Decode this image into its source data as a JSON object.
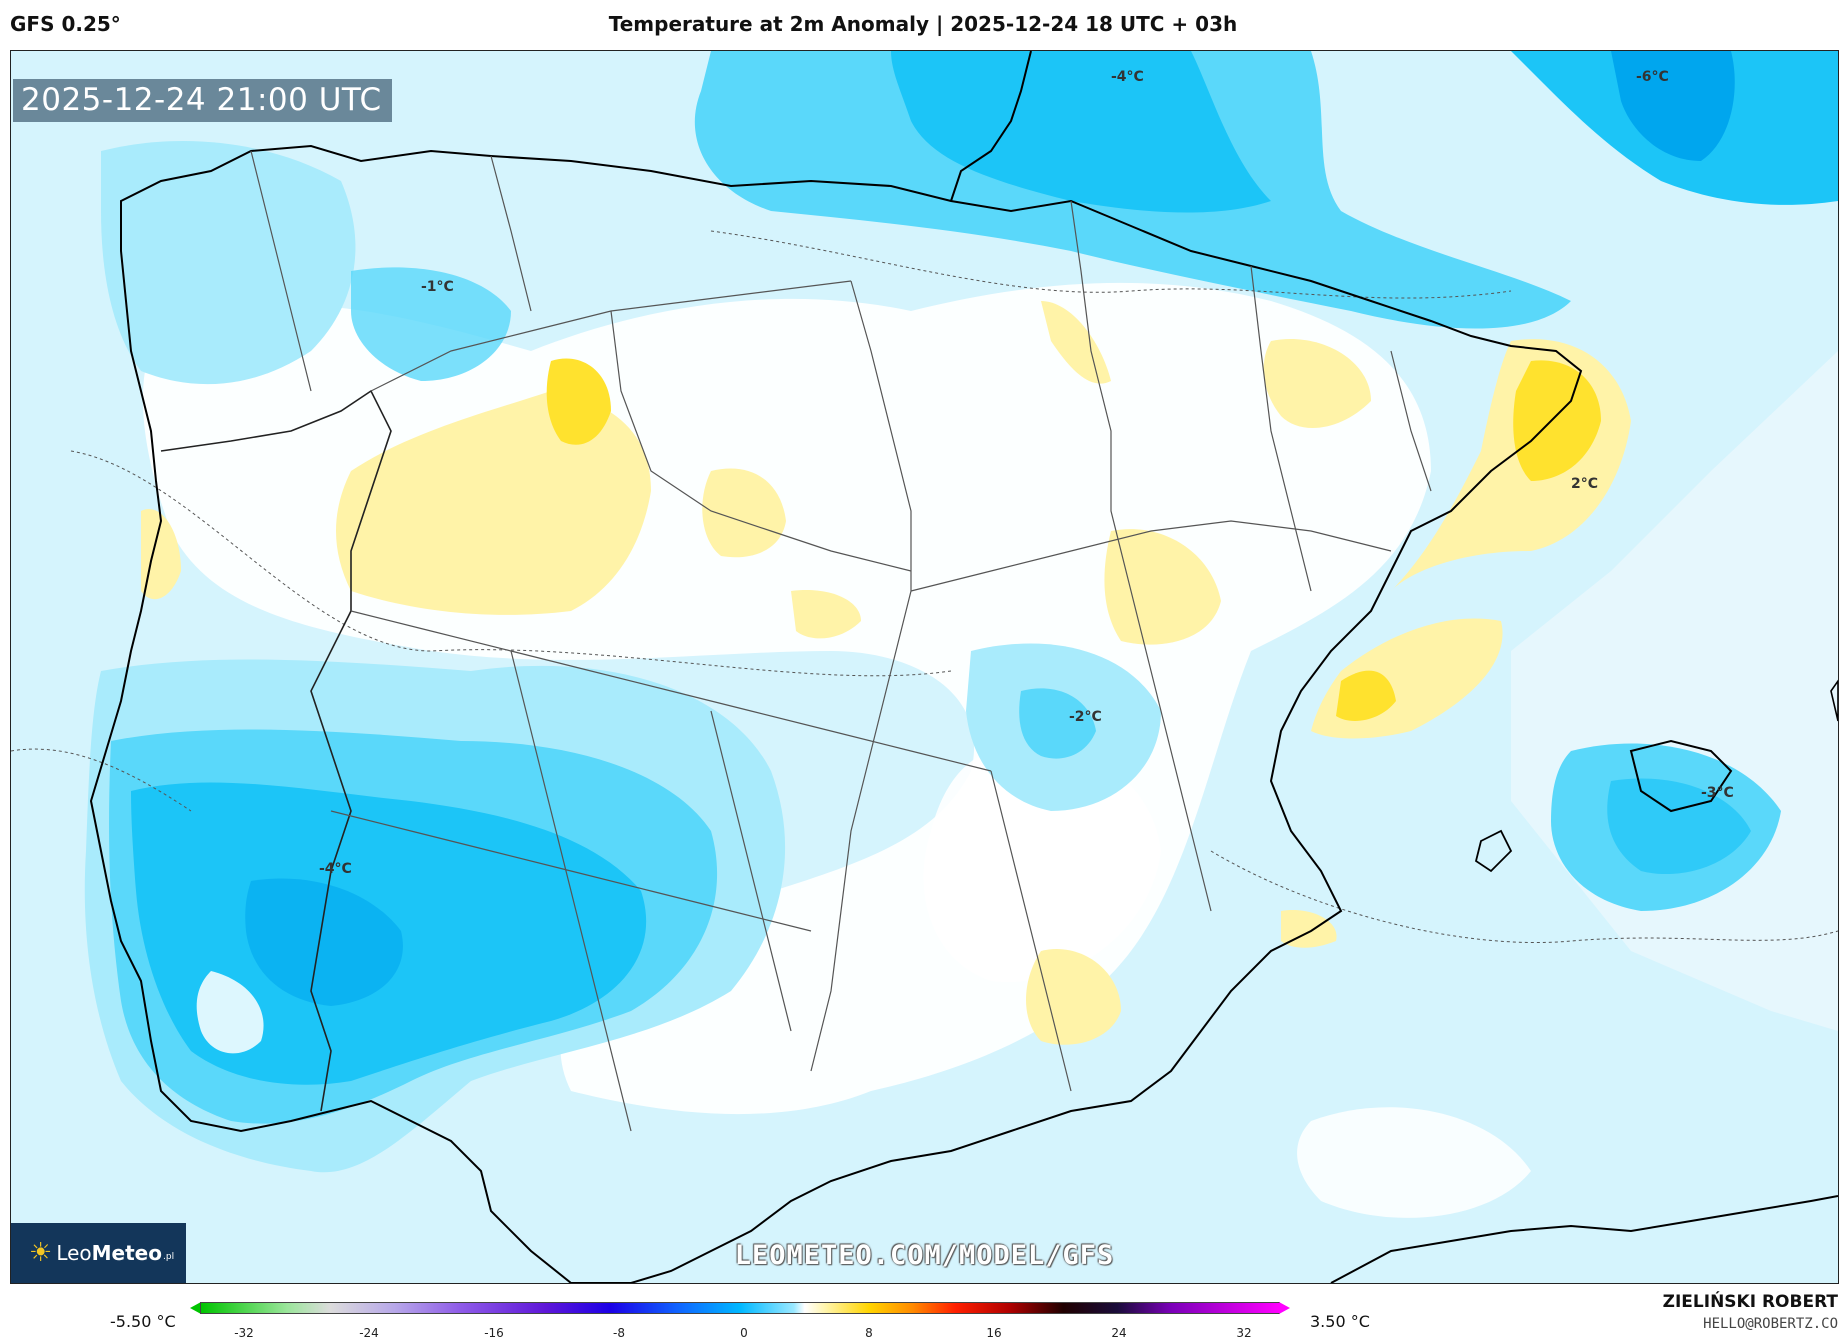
{
  "header": {
    "model": "GFS 0.25°",
    "title": "Temperature at 2m Anomaly | 2025-12-24 18 UTC + 03h"
  },
  "map": {
    "timestamp": "2025-12-24 21:00 UTC",
    "watermark": "LEOMETEO.COM/MODEL/GFS",
    "logo": {
      "prefix": "Leo",
      "bold": "Meteo",
      "suffix": ".pl"
    },
    "isolines": [
      {
        "label": "-4°C"
      },
      {
        "label": "-6°C"
      },
      {
        "label": "-1°C"
      },
      {
        "label": "2°C"
      },
      {
        "label": "-2°C"
      },
      {
        "label": "-3°C"
      },
      {
        "label": "-4°C"
      }
    ]
  },
  "colors": {
    "warm_light": "#fff3a8",
    "warm": "#ffe22e",
    "cold_pale": "#e6f7fd",
    "cold_light": "#a9ebfc",
    "cold_mid": "#5ad8fa",
    "cold": "#1cc5f7",
    "cold_deep": "#00a6ee"
  },
  "legend": {
    "min_label": "-5.50 °C",
    "max_label": "3.50 °C",
    "ticks": [
      "-32",
      "-24",
      "-16",
      "-8",
      "0",
      "8",
      "16",
      "24",
      "32"
    ]
  },
  "footer": {
    "author": "ZIELIŃSKI ROBERT",
    "email": "HELLO@ROBERTZ.CO"
  }
}
